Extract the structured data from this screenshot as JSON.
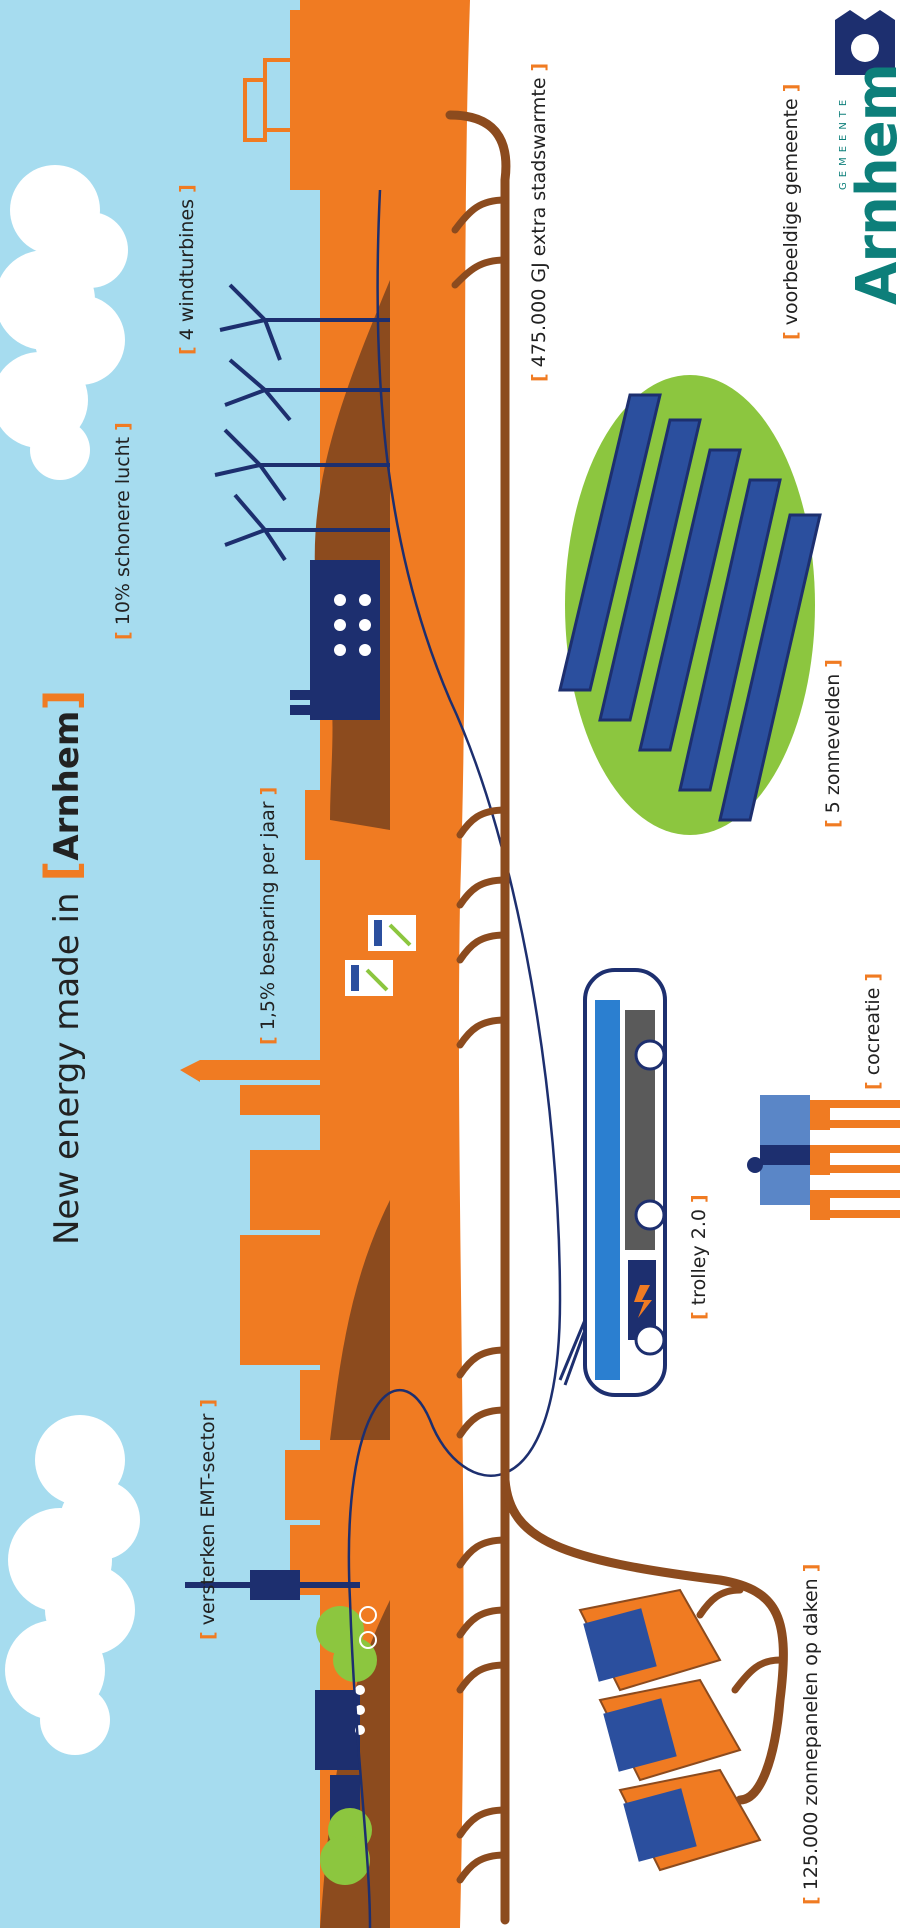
{
  "headline": {
    "text": "New energy made in",
    "bracket_open": "[",
    "highlight": "Arnhem",
    "bracket_close": "]"
  },
  "labels": {
    "air": "10% schonere lucht",
    "wind": "4 windturbines",
    "heat": "475.000 GJ extra stadswarmte",
    "saving": "1,5% besparing per jaar",
    "solar_fields": "5 zonnevelden",
    "cocreation": "cocreatie",
    "trolley": "trolley 2.0",
    "emt": "versterken EMT-sector",
    "roof_panels": "125.000 zonnepanelen op daken",
    "model_city": "voorbeeldige gemeente"
  },
  "logo": {
    "small": "GEMEENTE",
    "name": "Arnhem"
  },
  "colors": {
    "sky": "#a6dcef",
    "city_orange": "#f07b22",
    "ground_brown": "#8c4b1e",
    "heat_pipe": "#8c4b1e",
    "navy": "#1d2f6f",
    "panel_blue": "#2b4f9e",
    "field_green": "#8cc63f",
    "logo_teal": "#0d7f7a",
    "bracket": "#f07b22"
  },
  "icons": [
    "wind-turbine-icon",
    "factory-icon",
    "solar-panel-icon",
    "puzzle-icon",
    "trolley-bus-icon",
    "cloud-icon",
    "roof-solar-icon",
    "chart-icon",
    "bicycle-icon",
    "tree-icon",
    "city-crest-icon"
  ]
}
